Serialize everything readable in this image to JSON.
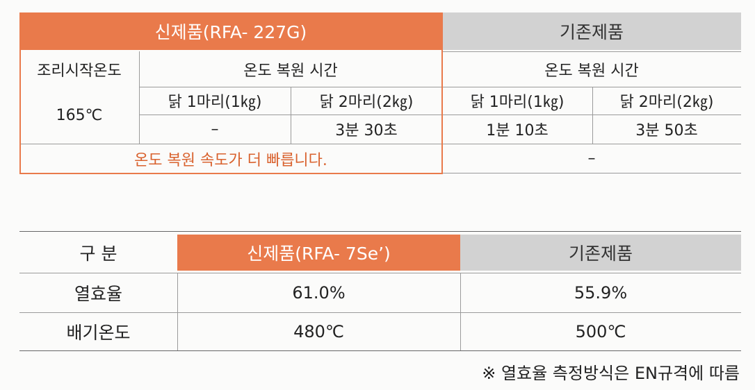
{
  "table1": {
    "header": {
      "new_product": "신제품(RFA- 227G)",
      "old_product": "기존제품"
    },
    "rows": [
      [
        "조리시작온도",
        "온도 복원 시간",
        "온도 복원 시간"
      ],
      [
        "165℃",
        "닭 1마리(1㎏)",
        "닭 2마리(2㎏)",
        "닭 1마리(1㎏)",
        "닭 2마리(2㎏)"
      ],
      [
        "–",
        "3분 30초",
        "1분 10초",
        "3분 50초"
      ],
      [
        "온도 복원 속도가 더 빠릅니다.",
        "–"
      ]
    ]
  },
  "table2": {
    "header": [
      "구 분",
      "신제품(RFA- 7Se’)",
      "기존제품"
    ],
    "rows": [
      [
        "열효율",
        "61.0%",
        "55.9%"
      ],
      [
        "배기온도",
        "480℃",
        "500℃"
      ]
    ]
  },
  "note": "※ 열효율 측정방식은 EN규격에 따름"
}
